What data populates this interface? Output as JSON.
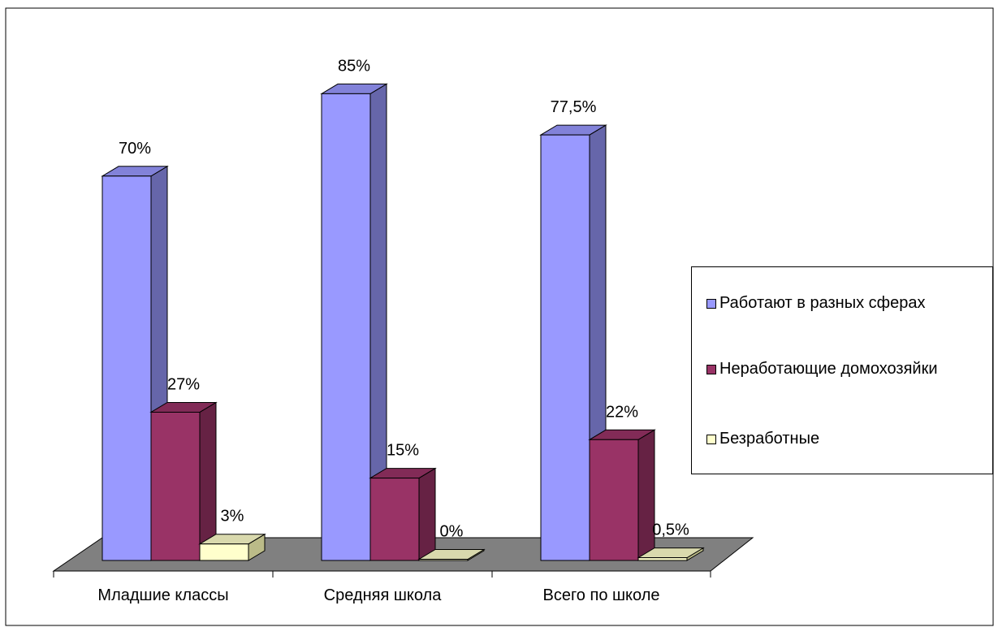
{
  "chart_data": {
    "type": "bar",
    "categories": [
      "Младшие классы",
      "Средняя школа",
      "Всего по школе"
    ],
    "series": [
      {
        "name": "Работают в разных сферах",
        "values": [
          70,
          85,
          77.5
        ],
        "labels": [
          "70%",
          "85%",
          "77,5%"
        ],
        "color": "#9999ff",
        "side_color": "#6666aa"
      },
      {
        "name": "Неработающие домохозяйки",
        "values": [
          27,
          15,
          22
        ],
        "labels": [
          "27%",
          "15%",
          "22%"
        ],
        "color": "#993366",
        "side_color": "#662244"
      },
      {
        "name": "Безработные",
        "values": [
          3,
          0,
          0.5
        ],
        "labels": [
          "3%",
          "0%",
          "0,5%"
        ],
        "color": "#ffffcc",
        "side_color": "#bbbb88"
      }
    ],
    "ylim": [
      0,
      100
    ],
    "legend_position": "right",
    "grid": false,
    "floor_color": "#808080"
  }
}
